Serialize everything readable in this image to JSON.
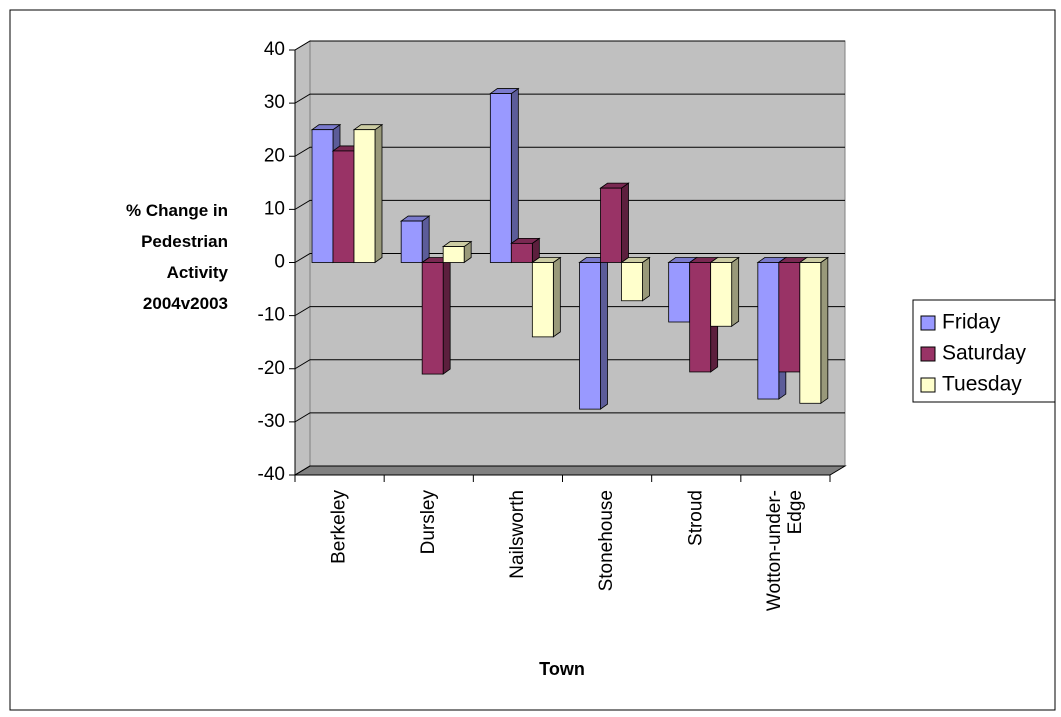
{
  "chart_data": {
    "type": "bar3d",
    "y_label": "% Change in Pedestrian Activity 2004v2003",
    "x_label": "Town",
    "categories": [
      "Berkeley",
      "Dursley",
      "Nailsworth",
      "Stonehouse",
      "Stroud",
      "Wotton-under-Edge"
    ],
    "series": [
      {
        "name": "Friday",
        "color": "#9999ff",
        "values": [
          25,
          7.8,
          31.8,
          -27.6,
          -11.2,
          -25.7
        ]
      },
      {
        "name": "Saturday",
        "color": "#993366",
        "values": [
          21,
          -21,
          3.6,
          14,
          -20.6,
          -20.6
        ]
      },
      {
        "name": "Tuesday",
        "color": "#ffffcc",
        "values": [
          25,
          3,
          -14,
          -7.2,
          -12,
          -26.5
        ]
      }
    ],
    "ylim": [
      -40,
      40
    ],
    "yticks": [
      -40,
      -30,
      -20,
      -10,
      0,
      10,
      20,
      30,
      40
    ],
    "grid": true,
    "legend": "right"
  }
}
